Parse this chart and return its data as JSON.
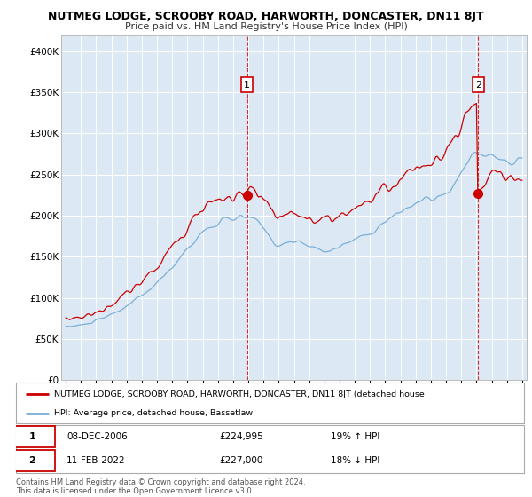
{
  "title": "NUTMEG LODGE, SCROOBY ROAD, HARWORTH, DONCASTER, DN11 8JT",
  "subtitle": "Price paid vs. HM Land Registry's House Price Index (HPI)",
  "ylabel_ticks": [
    "£0",
    "£50K",
    "£100K",
    "£150K",
    "£200K",
    "£250K",
    "£300K",
    "£350K",
    "£400K"
  ],
  "ylim": [
    0,
    420000
  ],
  "yticks": [
    0,
    50000,
    100000,
    150000,
    200000,
    250000,
    300000,
    350000,
    400000
  ],
  "xlim_start": 1994.7,
  "xlim_end": 2025.3,
  "background_color": "#dce9f5",
  "plot_bg": "#dce9f5",
  "red_color": "#cc0000",
  "blue_color": "#7aaed6",
  "sale1_date": "08-DEC-2006",
  "sale1_price": 224995,
  "sale1_label": "£224,995",
  "sale1_pct": "19% ↑ HPI",
  "sale1_year": 2006.92,
  "sale2_date": "11-FEB-2022",
  "sale2_price": 227000,
  "sale2_label": "£227,000",
  "sale2_pct": "18% ↓ HPI",
  "sale2_year": 2022.12,
  "legend_line1": "NUTMEG LODGE, SCROOBY ROAD, HARWORTH, DONCASTER, DN11 8JT (detached house",
  "legend_line2": "HPI: Average price, detached house, Bassetlaw",
  "footer": "Contains HM Land Registry data © Crown copyright and database right 2024.\nThis data is licensed under the Open Government Licence v3.0."
}
